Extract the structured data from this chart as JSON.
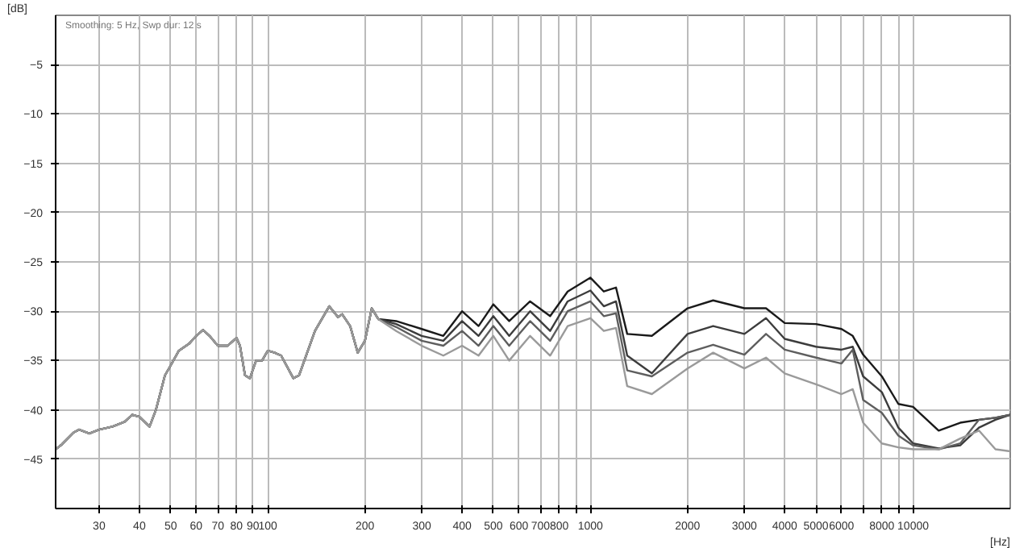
{
  "chart_data": {
    "type": "line",
    "xlabel": "[Hz]",
    "ylabel": "[dB]",
    "log": "x",
    "grid": true,
    "marker": "none",
    "line_style": "solid",
    "annotations": [
      "Smoothing: 5 Hz, Swp dur: 12 s"
    ],
    "xlim": [
      22,
      20000
    ],
    "ylim": [
      -50,
      0
    ],
    "xticks": [
      30,
      40,
      50,
      60,
      70,
      80,
      {
        "value": 90,
        "label": "90"
      },
      100,
      200,
      300,
      400,
      500,
      600,
      700,
      800,
      {
        "value": 900,
        "label": null
      },
      1000,
      2000,
      3000,
      4000,
      5000,
      6000,
      {
        "value": 7000,
        "label": null
      },
      8000,
      {
        "value": 9000,
        "label": null
      },
      10000
    ],
    "yticks": [
      -45,
      -40,
      -35,
      -30,
      -25,
      -20,
      -15,
      -10,
      -5
    ],
    "x": [
      22,
      23,
      25,
      26,
      28,
      30,
      33,
      36,
      38,
      40,
      43,
      45,
      48,
      50,
      53,
      57,
      60,
      63,
      66,
      70,
      75,
      80,
      82,
      85,
      88,
      92,
      96,
      100,
      105,
      110,
      120,
      125,
      140,
      155,
      165,
      170,
      180,
      190,
      200,
      210,
      220,
      250,
      300,
      350,
      400,
      450,
      500,
      560,
      650,
      750,
      850,
      1000,
      1100,
      1200,
      1300,
      1550,
      2000,
      2400,
      3000,
      3500,
      4000,
      5000,
      6000,
      6500,
      7000,
      8000,
      9000,
      10000,
      12000,
      14000,
      16000,
      18000,
      20000
    ],
    "series": [
      {
        "color": "#1a1a1a",
        "values": [
          -44,
          -43.5,
          -42.3,
          -42,
          -42.4,
          -42,
          -41.7,
          -41.2,
          -40.5,
          -40.7,
          -41.7,
          -40,
          -36.5,
          -35.5,
          -34,
          -33.3,
          -32.5,
          -31.9,
          -32.5,
          -33.5,
          -33.5,
          -32.7,
          -33.5,
          -36.5,
          -36.8,
          -35,
          -35,
          -34,
          -34.2,
          -34.5,
          -36.8,
          -36.5,
          -32,
          -29.5,
          -30.6,
          -30.3,
          -31.5,
          -34.2,
          -33,
          -29.7,
          -30.8,
          -31,
          -31.8,
          -32.5,
          -30,
          -31.5,
          -29.3,
          -31,
          -29,
          -30.5,
          -28,
          -26.6,
          -28,
          -27.6,
          -32.3,
          -32.5,
          -29.7,
          -28.9,
          -29.7,
          -29.7,
          -31.2,
          -31.3,
          -31.8,
          -32.5,
          -34.4,
          -36.6,
          -39.4,
          -39.7,
          -42.1,
          -41.3,
          -41,
          -40.8,
          -40.5
        ]
      },
      {
        "color": "#3c3c3c",
        "values": [
          -44,
          -43.5,
          -42.3,
          -42,
          -42.4,
          -42,
          -41.7,
          -41.2,
          -40.5,
          -40.7,
          -41.7,
          -40,
          -36.5,
          -35.5,
          -34,
          -33.3,
          -32.5,
          -31.9,
          -32.5,
          -33.5,
          -33.5,
          -32.7,
          -33.5,
          -36.5,
          -36.8,
          -35,
          -35,
          -34,
          -34.2,
          -34.5,
          -36.8,
          -36.5,
          -32,
          -29.5,
          -30.6,
          -30.3,
          -31.5,
          -34.2,
          -33,
          -29.7,
          -30.8,
          -31.3,
          -32.5,
          -33,
          -31,
          -32.5,
          -30.5,
          -32.5,
          -30,
          -32,
          -29,
          -27.9,
          -29.5,
          -29,
          -34.5,
          -36.3,
          -32.3,
          -31.5,
          -32.3,
          -30.7,
          -32.8,
          -33.6,
          -33.9,
          -33.6,
          -36.6,
          -38.2,
          -41.8,
          -43.4,
          -43.9,
          -43.6,
          -41.8,
          -41,
          -40.5
        ]
      },
      {
        "color": "#5e5e5e",
        "values": [
          -44,
          -43.5,
          -42.3,
          -42,
          -42.4,
          -42,
          -41.7,
          -41.2,
          -40.5,
          -40.7,
          -41.7,
          -40,
          -36.5,
          -35.5,
          -34,
          -33.3,
          -32.5,
          -31.9,
          -32.5,
          -33.5,
          -33.5,
          -32.7,
          -33.5,
          -36.5,
          -36.8,
          -35,
          -35,
          -34,
          -34.2,
          -34.5,
          -36.8,
          -36.5,
          -32,
          -29.5,
          -30.6,
          -30.3,
          -31.5,
          -34.2,
          -33,
          -29.7,
          -30.8,
          -31.6,
          -33,
          -33.5,
          -32,
          -33.5,
          -31.5,
          -33.5,
          -31,
          -33,
          -30,
          -29,
          -30.5,
          -30.2,
          -36,
          -36.6,
          -34.2,
          -33.4,
          -34.4,
          -32.3,
          -33.9,
          -34.7,
          -35.3,
          -33.9,
          -39,
          -40.3,
          -42.6,
          -43.6,
          -44,
          -43.4,
          -41,
          -40.8,
          -40.5
        ]
      },
      {
        "color": "#9a9a9a",
        "values": [
          -44,
          -43.5,
          -42.3,
          -42,
          -42.4,
          -42,
          -41.7,
          -41.2,
          -40.5,
          -40.7,
          -41.7,
          -40,
          -36.5,
          -35.5,
          -34,
          -33.3,
          -32.5,
          -31.9,
          -32.5,
          -33.5,
          -33.5,
          -32.7,
          -33.5,
          -36.5,
          -36.8,
          -35,
          -35,
          -34,
          -34.2,
          -34.5,
          -36.8,
          -36.5,
          -32,
          -29.5,
          -30.6,
          -30.3,
          -31.5,
          -34.2,
          -33,
          -29.7,
          -30.8,
          -32,
          -33.5,
          -34.5,
          -33.5,
          -34.5,
          -32.5,
          -35,
          -32.5,
          -34.5,
          -31.5,
          -30.7,
          -32,
          -31.7,
          -37.6,
          -38.4,
          -35.8,
          -34.2,
          -35.8,
          -34.7,
          -36.3,
          -37.4,
          -38.4,
          -37.9,
          -41.3,
          -43.4,
          -43.8,
          -44,
          -44,
          -42.9,
          -42.1,
          -44,
          -44.2
        ]
      }
    ]
  }
}
